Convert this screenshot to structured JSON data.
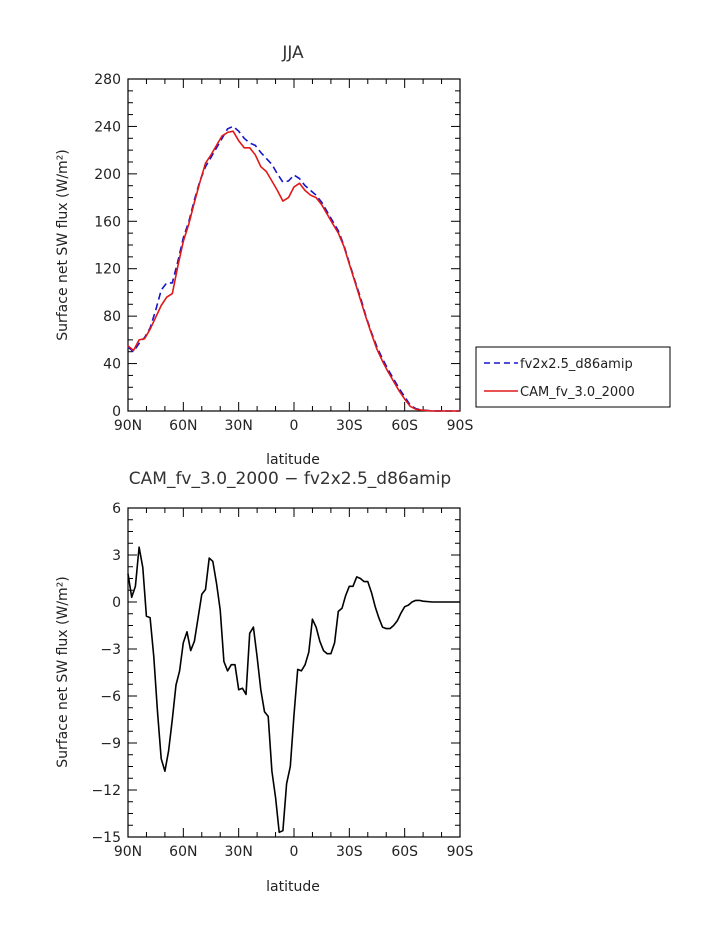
{
  "chart_data": [
    {
      "type": "line",
      "title": "JJA",
      "xlabel": "latitude",
      "ylabel": "Surface net SW flux (W/m²)",
      "xlim": [
        90,
        -90
      ],
      "ylim": [
        0,
        280
      ],
      "xticks": [
        90,
        60,
        30,
        0,
        -30,
        -60,
        -90
      ],
      "xticklabels": [
        "90N",
        "60N",
        "30N",
        "0",
        "30S",
        "60S",
        "90S"
      ],
      "yticks": [
        0,
        40,
        80,
        120,
        160,
        200,
        240,
        280
      ],
      "yticklabels": [
        "0",
        "40",
        "80",
        "120",
        "160",
        "200",
        "240",
        "280"
      ],
      "legend": "right",
      "series": [
        {
          "name": "fv2x2.5_d86amip",
          "color": "#1414cc",
          "dash": "dashed",
          "x": [
            90,
            87,
            84,
            81,
            78,
            75,
            72,
            69,
            66,
            63,
            60,
            57,
            54,
            51,
            48,
            45,
            42,
            39,
            36,
            33,
            30,
            27,
            24,
            21,
            18,
            15,
            12,
            9,
            6,
            3,
            0,
            -3,
            -6,
            -9,
            -12,
            -15,
            -18,
            -21,
            -24,
            -27,
            -30,
            -33,
            -36,
            -39,
            -42,
            -45,
            -48,
            -51,
            -54,
            -57,
            -60,
            -63,
            -66,
            -69,
            -72,
            -75,
            -78,
            -81,
            -84,
            -87,
            -90
          ],
          "y": [
            54,
            50,
            57,
            62,
            70,
            85,
            102,
            108,
            108,
            126,
            146,
            160,
            178,
            194,
            206,
            214,
            222,
            230,
            238,
            240,
            236,
            230,
            226,
            224,
            218,
            213,
            208,
            200,
            193,
            194,
            199,
            196,
            190,
            186,
            182,
            176,
            168,
            160,
            152,
            140,
            125,
            110,
            96,
            80,
            66,
            54,
            44,
            35,
            27,
            19,
            12,
            5,
            2,
            1,
            0.5,
            0,
            0,
            0,
            0,
            0,
            0
          ]
        },
        {
          "name": "CAM_fv_3.0_2000",
          "color": "#e01818",
          "dash": "solid",
          "x": [
            90,
            87,
            84,
            81,
            78,
            75,
            72,
            69,
            66,
            63,
            60,
            57,
            54,
            51,
            48,
            45,
            42,
            39,
            36,
            33,
            30,
            27,
            24,
            21,
            18,
            15,
            12,
            9,
            6,
            3,
            0,
            -3,
            -6,
            -9,
            -12,
            -15,
            -18,
            -21,
            -24,
            -27,
            -30,
            -33,
            -36,
            -39,
            -42,
            -45,
            -48,
            -51,
            -54,
            -57,
            -60,
            -63,
            -66,
            -69,
            -72,
            -75,
            -78,
            -81,
            -84,
            -87,
            -90
          ],
          "y": [
            55,
            51,
            60,
            61,
            69,
            79,
            89,
            96,
            99,
            122,
            143,
            158,
            176,
            193,
            209,
            216,
            224,
            232,
            235,
            236,
            228,
            222,
            222,
            216,
            206,
            202,
            194,
            186,
            177,
            180,
            189,
            192,
            186,
            182,
            180,
            174,
            166,
            158,
            150,
            139,
            124,
            109,
            94,
            79,
            65,
            52,
            42,
            33,
            25,
            17,
            10,
            4,
            1.5,
            0.8,
            0.3,
            0,
            0,
            0,
            0,
            0,
            0
          ]
        }
      ]
    },
    {
      "type": "line",
      "title": "CAM_fv_3.0_2000 − fv2x2.5_d86amip",
      "xlabel": "latitude",
      "ylabel": "Surface net SW flux (W/m²)",
      "xlim": [
        90,
        -90
      ],
      "ylim": [
        -15,
        6
      ],
      "xticks": [
        90,
        60,
        30,
        0,
        -30,
        -60,
        -90
      ],
      "xticklabels": [
        "90N",
        "60N",
        "30N",
        "0",
        "30S",
        "60S",
        "90S"
      ],
      "yticks": [
        -15,
        -12,
        -9,
        -6,
        -3,
        0,
        3,
        6
      ],
      "yticklabels": [
        "−15",
        "−12",
        "−9",
        "−6",
        "−3",
        "0",
        "3",
        "6"
      ],
      "series": [
        {
          "color": "#000000",
          "dash": "solid",
          "x": [
            90,
            88,
            86,
            84,
            82,
            80,
            78,
            76,
            74,
            72,
            70,
            68,
            66,
            64,
            62,
            60,
            58,
            56,
            54,
            52,
            50,
            48,
            46,
            44,
            42,
            40,
            38,
            36,
            34,
            32,
            30,
            28,
            26,
            24,
            22,
            20,
            18,
            16,
            14,
            12,
            10,
            8,
            6,
            4,
            2,
            0,
            -2,
            -4,
            -6,
            -8,
            -10,
            -12,
            -14,
            -16,
            -18,
            -20,
            -22,
            -24,
            -26,
            -28,
            -30,
            -32,
            -34,
            -36,
            -38,
            -40,
            -42,
            -44,
            -46,
            -48,
            -50,
            -52,
            -54,
            -56,
            -58,
            -60,
            -62,
            -64,
            -66,
            -68,
            -70,
            -75,
            -80,
            -85,
            -90
          ],
          "y": [
            1.8,
            0.3,
            1.0,
            3.5,
            2.2,
            -0.9,
            -1.0,
            -3.5,
            -7.0,
            -10.0,
            -10.8,
            -9.5,
            -7.5,
            -5.3,
            -4.4,
            -2.6,
            -1.9,
            -3.1,
            -2.5,
            -1.0,
            0.5,
            0.8,
            2.8,
            2.6,
            1.2,
            -0.5,
            -3.8,
            -4.4,
            -4.0,
            -4.0,
            -5.6,
            -5.5,
            -5.9,
            -2.0,
            -1.6,
            -3.5,
            -5.6,
            -7.0,
            -7.3,
            -10.8,
            -12.5,
            -14.7,
            -14.6,
            -11.6,
            -10.5,
            -7.2,
            -4.3,
            -4.4,
            -4.0,
            -3.2,
            -1.1,
            -1.6,
            -2.5,
            -3.1,
            -3.3,
            -3.3,
            -2.6,
            -0.6,
            -0.4,
            0.4,
            1.0,
            1.0,
            1.6,
            1.5,
            1.3,
            1.3,
            0.6,
            -0.3,
            -1.0,
            -1.6,
            -1.7,
            -1.7,
            -1.5,
            -1.2,
            -0.7,
            -0.3,
            -0.2,
            0.0,
            0.1,
            0.1,
            0.05,
            0.0,
            0.0,
            0.0,
            0.0
          ]
        }
      ]
    }
  ]
}
